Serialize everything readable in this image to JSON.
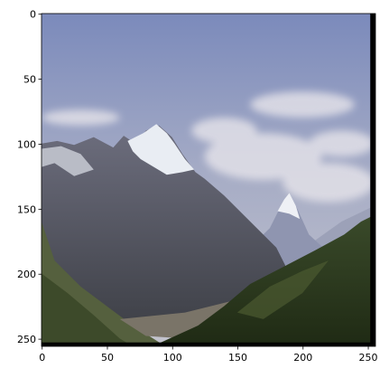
{
  "image_axes": {
    "xlim": [
      -0.5,
      255.5
    ],
    "ylim": [
      255.5,
      -0.5
    ],
    "xticks": [
      0,
      50,
      100,
      150,
      200,
      250
    ],
    "yticks": [
      0,
      50,
      100,
      150,
      200,
      250
    ]
  }
}
